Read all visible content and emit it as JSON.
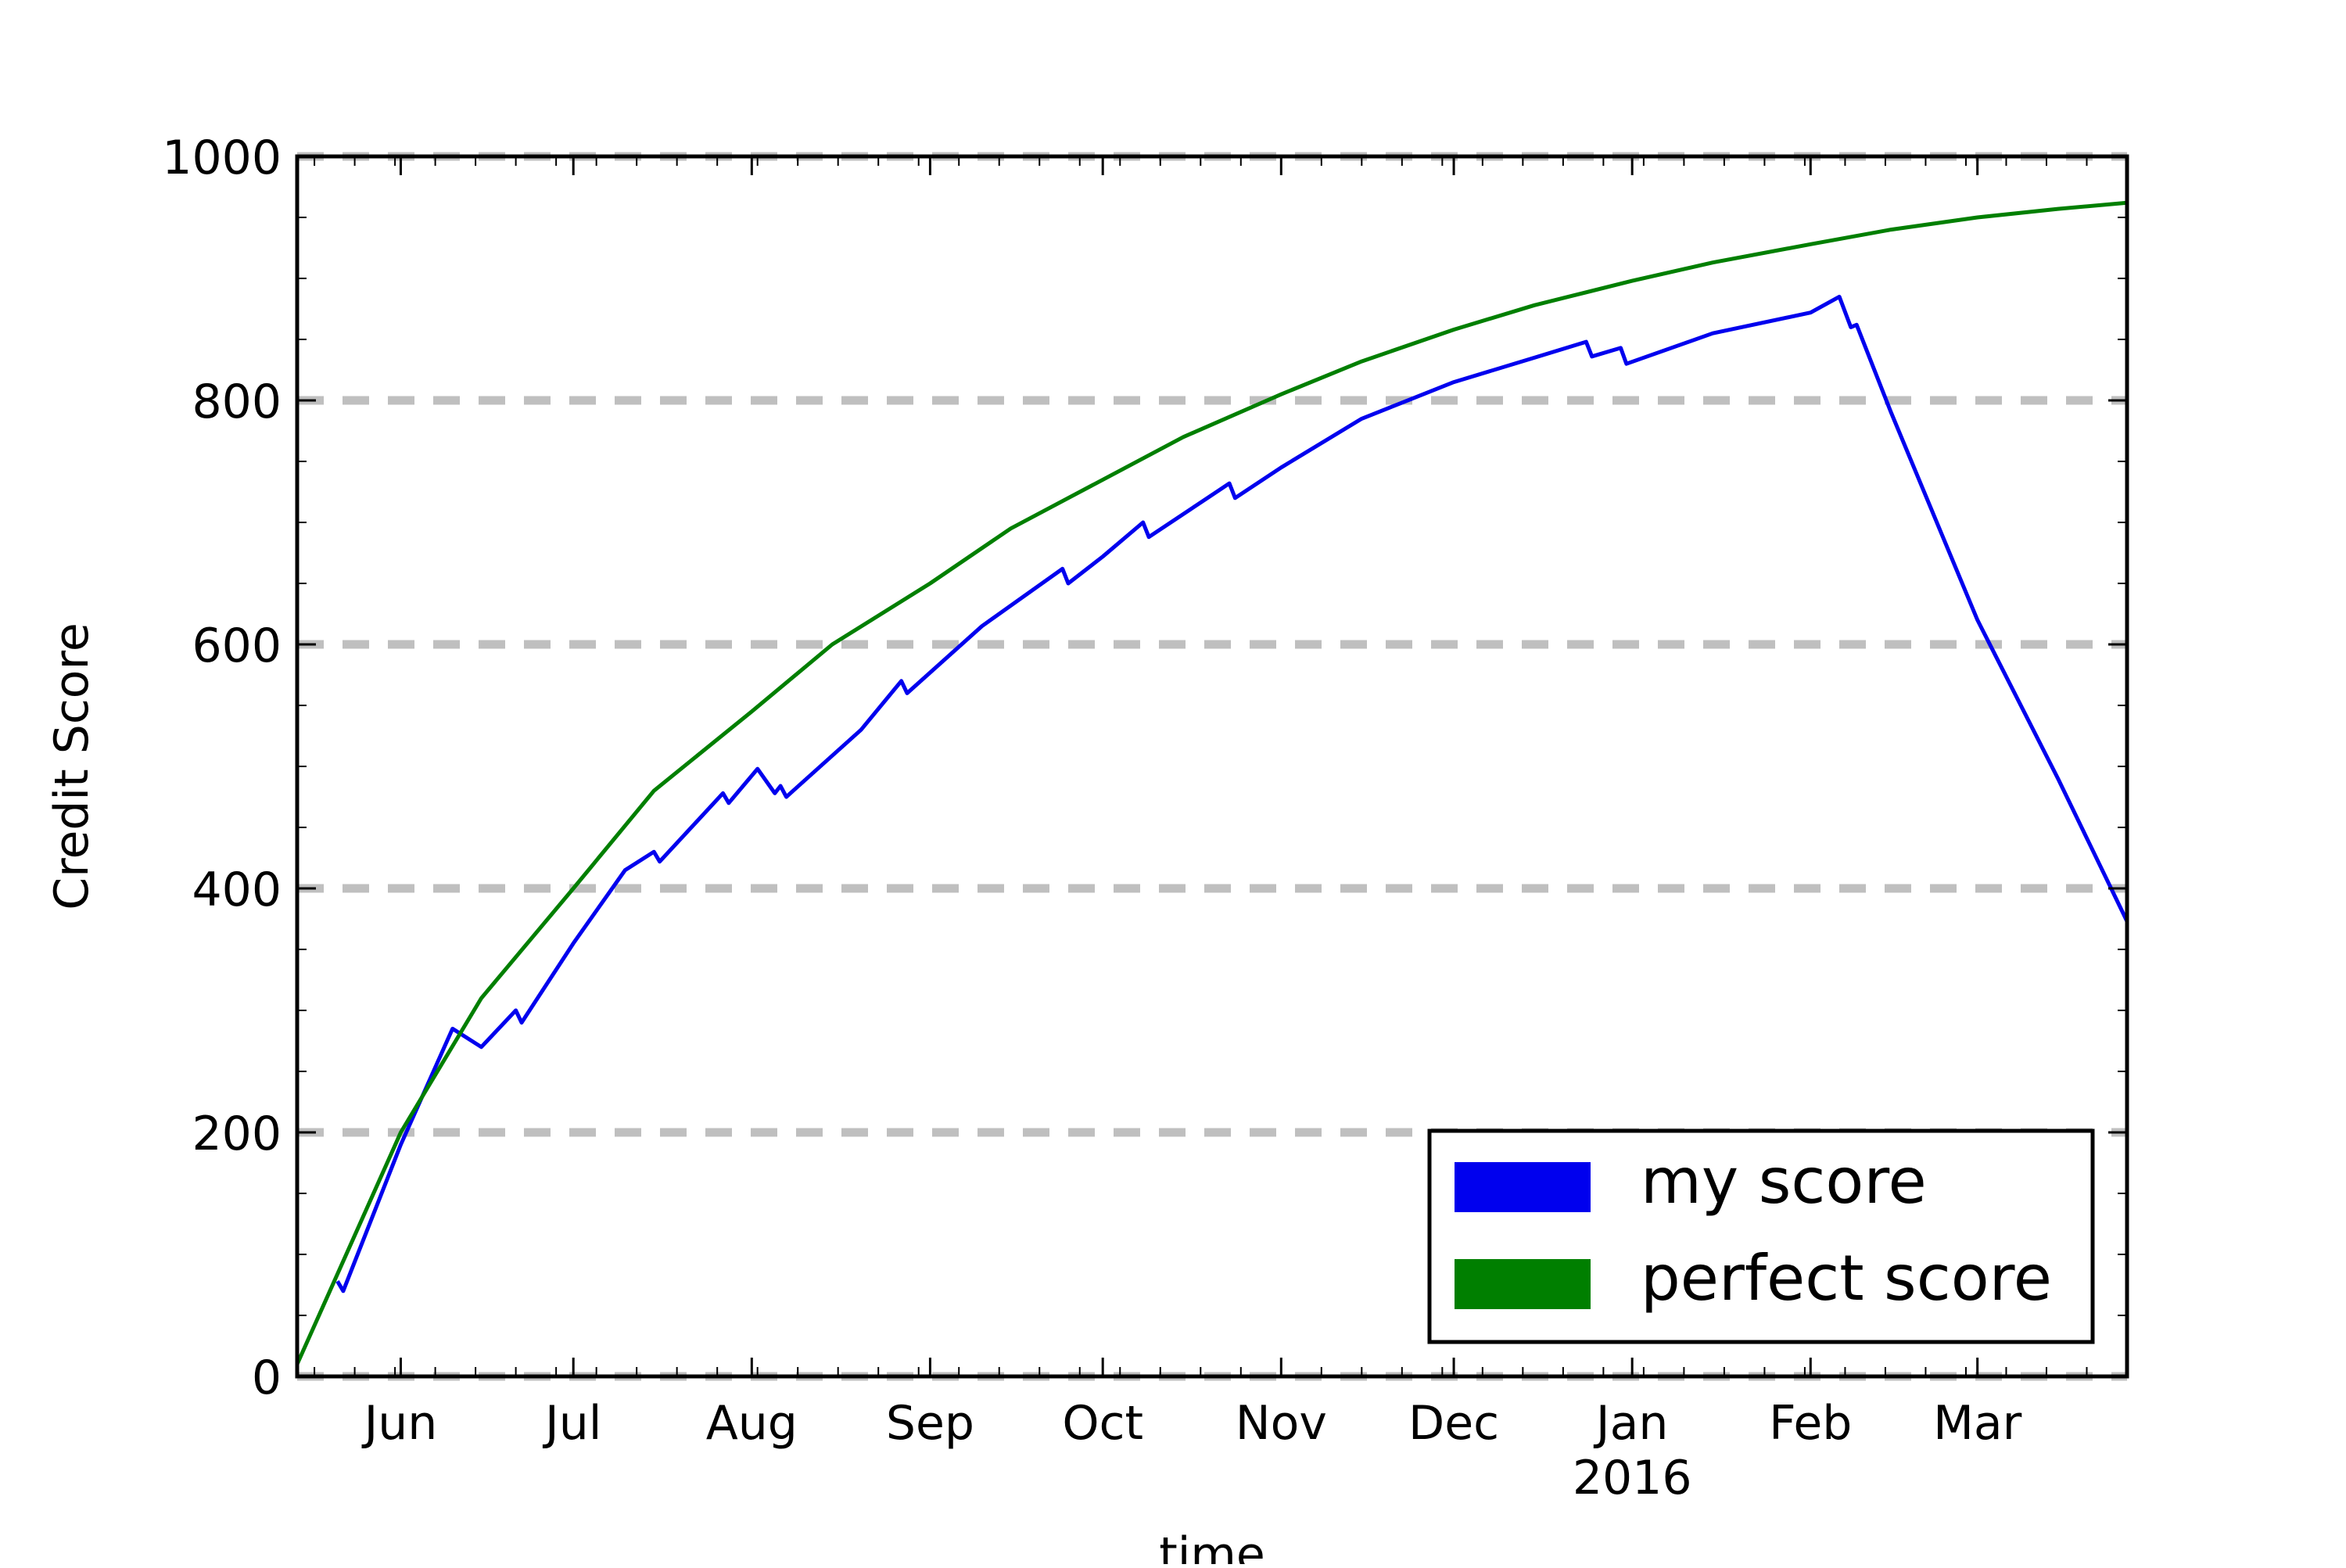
{
  "chart_data": {
    "type": "line",
    "title": "",
    "xlabel": "time",
    "ylabel": "Credit Score",
    "ylim": [
      0,
      1000
    ],
    "xlim": [
      "2015-05-14",
      "2016-03-27"
    ],
    "yticks": [
      0,
      200,
      400,
      600,
      800,
      1000
    ],
    "ytick_labels": [
      "0",
      "200",
      "400",
      "600",
      "800",
      "1000"
    ],
    "xticks": [
      {
        "date": "2015-06-01",
        "label": "Jun",
        "sublabel": ""
      },
      {
        "date": "2015-07-01",
        "label": "Jul",
        "sublabel": ""
      },
      {
        "date": "2015-08-01",
        "label": "Aug",
        "sublabel": ""
      },
      {
        "date": "2015-09-01",
        "label": "Sep",
        "sublabel": ""
      },
      {
        "date": "2015-10-01",
        "label": "Oct",
        "sublabel": ""
      },
      {
        "date": "2015-11-01",
        "label": "Nov",
        "sublabel": ""
      },
      {
        "date": "2015-12-01",
        "label": "Dec",
        "sublabel": ""
      },
      {
        "date": "2016-01-01",
        "label": "Jan",
        "sublabel": "2016"
      },
      {
        "date": "2016-02-01",
        "label": "Feb",
        "sublabel": ""
      },
      {
        "date": "2016-03-01",
        "label": "Mar",
        "sublabel": ""
      }
    ],
    "grid": {
      "y": true,
      "x": false,
      "style": "dashed",
      "color": "#bfbfbf"
    },
    "legend": {
      "position": "lower-right"
    },
    "series": [
      {
        "name": "my score",
        "color": "#0000ee",
        "points": [
          [
            "2015-05-21",
            78
          ],
          [
            "2015-05-22",
            70
          ],
          [
            "2015-06-01",
            190
          ],
          [
            "2015-06-10",
            285
          ],
          [
            "2015-06-15",
            270
          ],
          [
            "2015-06-21",
            300
          ],
          [
            "2015-06-22",
            290
          ],
          [
            "2015-07-01",
            355
          ],
          [
            "2015-07-10",
            415
          ],
          [
            "2015-07-15",
            430
          ],
          [
            "2015-07-16",
            422
          ],
          [
            "2015-07-27",
            478
          ],
          [
            "2015-07-28",
            470
          ],
          [
            "2015-08-02",
            498
          ],
          [
            "2015-08-05",
            478
          ],
          [
            "2015-08-06",
            484
          ],
          [
            "2015-08-07",
            475
          ],
          [
            "2015-08-20",
            530
          ],
          [
            "2015-08-27",
            570
          ],
          [
            "2015-08-28",
            560
          ],
          [
            "2015-09-10",
            615
          ],
          [
            "2015-09-24",
            662
          ],
          [
            "2015-09-25",
            650
          ],
          [
            "2015-10-01",
            672
          ],
          [
            "2015-10-08",
            700
          ],
          [
            "2015-10-09",
            688
          ],
          [
            "2015-10-23",
            732
          ],
          [
            "2015-10-24",
            720
          ],
          [
            "2015-11-01",
            745
          ],
          [
            "2015-11-15",
            785
          ],
          [
            "2015-12-01",
            815
          ],
          [
            "2015-12-15",
            835
          ],
          [
            "2015-12-24",
            848
          ],
          [
            "2015-12-25",
            836
          ],
          [
            "2015-12-30",
            843
          ],
          [
            "2015-12-31",
            830
          ],
          [
            "2016-01-15",
            855
          ],
          [
            "2016-02-01",
            872
          ],
          [
            "2016-02-06",
            885
          ],
          [
            "2016-02-08",
            860
          ],
          [
            "2016-02-09",
            862
          ],
          [
            "2016-02-15",
            790
          ],
          [
            "2016-03-01",
            620
          ],
          [
            "2016-03-15",
            490
          ],
          [
            "2016-03-27",
            373
          ]
        ]
      },
      {
        "name": "perfect score",
        "color": "#007f00",
        "points": [
          [
            "2015-05-14",
            10
          ],
          [
            "2015-06-01",
            200
          ],
          [
            "2015-06-15",
            310
          ],
          [
            "2015-07-01",
            400
          ],
          [
            "2015-07-15",
            480
          ],
          [
            "2015-08-01",
            545
          ],
          [
            "2015-08-15",
            600
          ],
          [
            "2015-09-01",
            650
          ],
          [
            "2015-09-15",
            695
          ],
          [
            "2015-10-01",
            735
          ],
          [
            "2015-10-15",
            770
          ],
          [
            "2015-11-01",
            805
          ],
          [
            "2015-11-15",
            832
          ],
          [
            "2015-12-01",
            858
          ],
          [
            "2015-12-15",
            878
          ],
          [
            "2016-01-01",
            898
          ],
          [
            "2016-01-15",
            913
          ],
          [
            "2016-02-01",
            928
          ],
          [
            "2016-02-15",
            940
          ],
          [
            "2016-03-01",
            950
          ],
          [
            "2016-03-15",
            957
          ],
          [
            "2016-03-27",
            962
          ]
        ]
      }
    ]
  }
}
